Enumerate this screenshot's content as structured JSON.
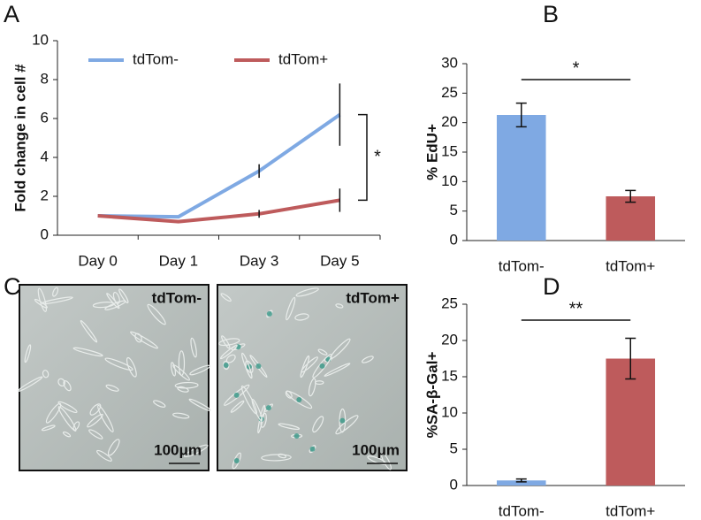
{
  "chart_data": [
    {
      "type": "line",
      "panel": "A",
      "y_label": "Fold change in cell #",
      "categories": [
        "Day 0",
        "Day 1",
        "Day 3",
        "Day 5"
      ],
      "series": [
        {
          "name": "tdTom-",
          "color": "#7fa9e3",
          "values": [
            1,
            0.95,
            3.3,
            6.2
          ],
          "errors": [
            null,
            null,
            0.35,
            1.6
          ]
        },
        {
          "name": "tdTom+",
          "color": "#be5b5c",
          "values": [
            1,
            0.7,
            1.1,
            1.8
          ],
          "errors": [
            null,
            null,
            0.2,
            0.6
          ]
        }
      ],
      "ylim": [
        0,
        10
      ],
      "yticks": [
        0,
        2,
        4,
        6,
        8,
        10
      ],
      "legend": "top",
      "annotations": [
        {
          "text": "*"
        }
      ]
    },
    {
      "type": "bar",
      "panel": "B",
      "y_label": "% EdU+",
      "categories": [
        "tdTom-",
        "tdTom+"
      ],
      "values": [
        21.3,
        7.5
      ],
      "errors": [
        2.0,
        1.0
      ],
      "colors": [
        "#7fa9e3",
        "#be5b5c"
      ],
      "ylim": [
        0,
        30
      ],
      "yticks": [
        0,
        5,
        10,
        15,
        20,
        25,
        30
      ],
      "annotations": [
        {
          "text": "*"
        }
      ]
    },
    {
      "type": "bar",
      "panel": "D",
      "y_label": "%SA-β-Gal+",
      "categories": [
        "tdTom-",
        "tdTom+"
      ],
      "values": [
        0.7,
        17.5
      ],
      "errors": [
        0.2,
        2.8
      ],
      "colors": [
        "#7fa9e3",
        "#be5b5c"
      ],
      "ylim": [
        0,
        25
      ],
      "yticks": [
        0,
        5,
        10,
        15,
        20,
        25
      ],
      "annotations": [
        {
          "text": "**"
        }
      ]
    }
  ],
  "panel_c": {
    "panel": "C",
    "images": [
      {
        "label": "tdTom-",
        "scale": "100μm"
      },
      {
        "label": "tdTom+",
        "scale": "100μm"
      }
    ]
  }
}
